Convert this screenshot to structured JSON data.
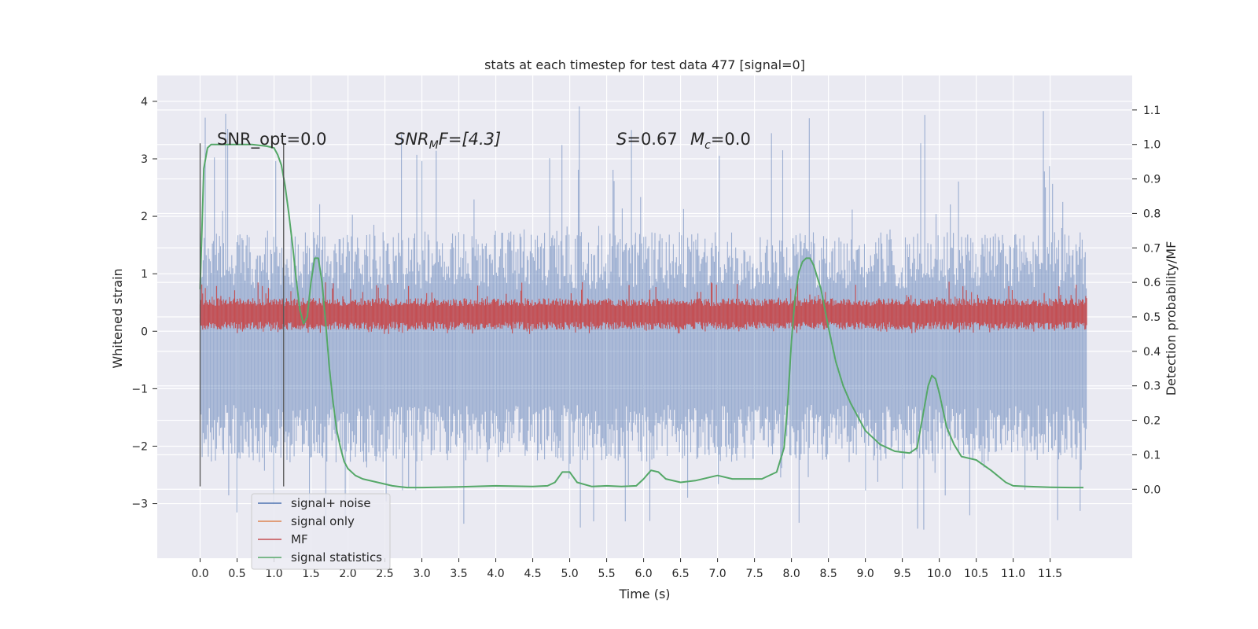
{
  "chart_data": {
    "type": "line",
    "title": "stats at each timestep for test data 477 [signal=0]",
    "xlabel": "Time (s)",
    "ylabel": "Whitened strain",
    "ylabel_right": "Detection probability/MF",
    "xlim": [
      -0.58,
      12.61
    ],
    "ylim": [
      -3.95,
      4.45
    ],
    "ylim_right": [
      -0.2,
      1.2
    ],
    "x_ticks": [
      "0.0",
      "0.5",
      "1.0",
      "1.5",
      "2.0",
      "2.5",
      "3.0",
      "3.5",
      "4.0",
      "4.5",
      "5.0",
      "5.5",
      "6.0",
      "6.5",
      "7.0",
      "7.5",
      "8.0",
      "8.5",
      "9.0",
      "9.5",
      "10.0",
      "10.5",
      "11.0",
      "11.5"
    ],
    "y_ticks": [
      "−3",
      "−2",
      "−1",
      "0",
      "1",
      "2",
      "3",
      "4"
    ],
    "y_ticks_right": [
      "0.0",
      "0.1",
      "0.2",
      "0.3",
      "0.4",
      "0.5",
      "0.6",
      "0.7",
      "0.8",
      "0.9",
      "1.0",
      "1.1"
    ],
    "grid": true,
    "legend_placement": "lower-left",
    "annotations": {
      "snr_opt": "SNR_opt=0.0",
      "snr_mf_var": "SNR",
      "snr_mf_sub": "M",
      "snr_mf_rest": "F=[4.3]",
      "s_var": "S",
      "s_rest": "=0.67",
      "mc_var": "M",
      "mc_sub": "c",
      "mc_rest": "=0.0"
    },
    "window_lines": {
      "x": [
        0.0,
        1.13
      ],
      "y_range": [
        -2.7,
        3.27
      ]
    },
    "series": [
      {
        "name": "signal+ noise",
        "color": "#4c72b0",
        "axis": "left",
        "kind": "noise-band",
        "x_range": [
          0.0,
          12.0
        ],
        "dense_body": [
          -2.1,
          1.55
        ],
        "spike_max": 4.1,
        "spike_min": -3.5
      },
      {
        "name": "signal only",
        "color": "#dd8452",
        "axis": "left",
        "kind": "flat",
        "values": []
      },
      {
        "name": "MF",
        "color": "#c44e52",
        "axis": "left",
        "kind": "noise-band",
        "x_range": [
          0.0,
          12.0
        ],
        "dense_body": [
          0.05,
          0.55
        ],
        "spike_max": 0.9,
        "spike_min": -0.05
      },
      {
        "name": "signal statistics",
        "color": "#55a868",
        "axis": "right",
        "kind": "line",
        "x": [
          0.0,
          0.05,
          0.1,
          0.15,
          0.2,
          0.3,
          0.5,
          0.7,
          0.9,
          1.0,
          1.05,
          1.1,
          1.15,
          1.2,
          1.25,
          1.3,
          1.35,
          1.4,
          1.45,
          1.5,
          1.55,
          1.6,
          1.65,
          1.7,
          1.75,
          1.8,
          1.85,
          1.9,
          1.95,
          2.0,
          2.1,
          2.2,
          2.4,
          2.6,
          2.8,
          3.0,
          3.5,
          4.0,
          4.5,
          4.7,
          4.8,
          4.9,
          5.0,
          5.1,
          5.3,
          5.5,
          5.7,
          5.9,
          6.0,
          6.1,
          6.2,
          6.3,
          6.5,
          6.7,
          7.0,
          7.2,
          7.4,
          7.6,
          7.8,
          7.9,
          7.95,
          8.0,
          8.05,
          8.1,
          8.15,
          8.2,
          8.25,
          8.3,
          8.4,
          8.5,
          8.6,
          8.7,
          8.8,
          9.0,
          9.2,
          9.4,
          9.6,
          9.7,
          9.8,
          9.85,
          9.9,
          9.95,
          10.0,
          10.1,
          10.2,
          10.3,
          10.5,
          10.7,
          10.9,
          11.0,
          11.2,
          11.5,
          11.8,
          11.95
        ],
        "y": [
          0.58,
          0.93,
          0.99,
          1.0,
          1.0,
          1.0,
          1.0,
          1.0,
          0.995,
          0.99,
          0.97,
          0.94,
          0.88,
          0.8,
          0.71,
          0.61,
          0.52,
          0.48,
          0.5,
          0.6,
          0.67,
          0.67,
          0.6,
          0.48,
          0.35,
          0.25,
          0.17,
          0.12,
          0.08,
          0.06,
          0.04,
          0.03,
          0.02,
          0.01,
          0.005,
          0.005,
          0.007,
          0.01,
          0.008,
          0.01,
          0.02,
          0.05,
          0.05,
          0.02,
          0.008,
          0.01,
          0.008,
          0.01,
          0.03,
          0.055,
          0.05,
          0.03,
          0.02,
          0.025,
          0.04,
          0.03,
          0.03,
          0.03,
          0.05,
          0.12,
          0.25,
          0.43,
          0.56,
          0.63,
          0.66,
          0.67,
          0.67,
          0.65,
          0.58,
          0.47,
          0.37,
          0.3,
          0.25,
          0.17,
          0.13,
          0.11,
          0.105,
          0.12,
          0.24,
          0.3,
          0.33,
          0.32,
          0.28,
          0.18,
          0.13,
          0.095,
          0.085,
          0.055,
          0.02,
          0.01,
          0.008,
          0.006,
          0.005,
          0.005
        ]
      }
    ]
  }
}
